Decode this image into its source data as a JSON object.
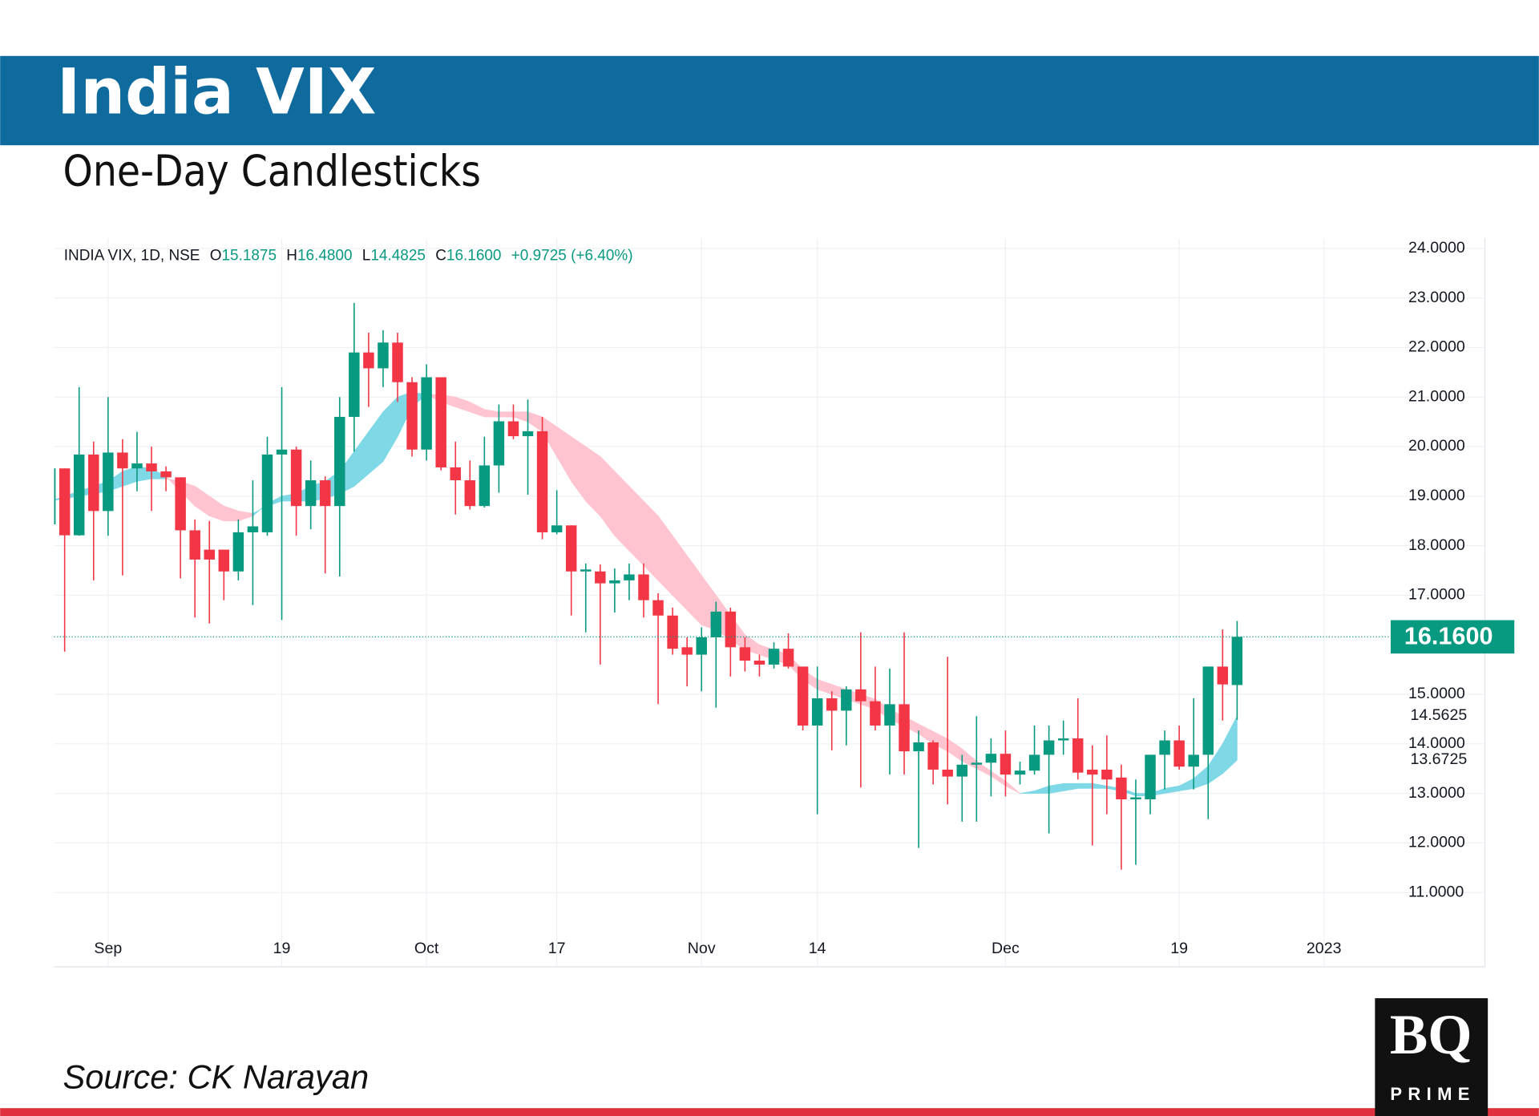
{
  "header": {
    "title": "India VIX",
    "subtitle": "One-Day Candlesticks"
  },
  "footer": {
    "source": "Source: CK Narayan",
    "logo_main": "BQ",
    "logo_sub": "PRIME"
  },
  "chart_data": {
    "type": "candlestick",
    "legend": {
      "symbol": "INDIA VIX, 1D, NSE",
      "open_label": "O",
      "open": "15.1875",
      "high_label": "H",
      "high": "16.4800",
      "low_label": "L",
      "low": "14.4825",
      "close_label": "C",
      "close": "16.1600",
      "change": "+0.9725 (+6.40%)"
    },
    "last_label": "16.1600",
    "up_color": "#089981",
    "down_color": "#f23645",
    "cloud_up_color": "#7fd8e6",
    "cloud_down_color": "#ffc4cf",
    "ylim": [
      9.5,
      24.2
    ],
    "yticks": [
      {
        "value": 11,
        "label": "11.0000"
      },
      {
        "value": 12,
        "label": "12.0000"
      },
      {
        "value": 13,
        "label": "13.0000"
      },
      {
        "value": 14,
        "label": "14.0000"
      },
      {
        "value": 15,
        "label": "15.0000"
      },
      {
        "value": 17,
        "label": "17.0000"
      },
      {
        "value": 18,
        "label": "18.0000"
      },
      {
        "value": 19,
        "label": "19.0000"
      },
      {
        "value": 20,
        "label": "20.0000"
      },
      {
        "value": 21,
        "label": "21.0000"
      },
      {
        "value": 22,
        "label": "22.0000"
      },
      {
        "value": 23,
        "label": "23.0000"
      },
      {
        "value": 24,
        "label": "24.0000"
      }
    ],
    "grid": true,
    "categories": [
      null,
      null,
      null,
      null,
      "Sep",
      null,
      null,
      null,
      null,
      null,
      null,
      null,
      null,
      null,
      null,
      null,
      "19",
      null,
      null,
      null,
      null,
      null,
      null,
      null,
      null,
      null,
      "Oct",
      null,
      null,
      null,
      null,
      null,
      null,
      null,
      null,
      "17",
      null,
      null,
      null,
      null,
      null,
      null,
      null,
      null,
      null,
      "Nov",
      null,
      null,
      null,
      null,
      null,
      null,
      null,
      "14",
      null,
      null,
      null,
      null,
      null,
      null,
      null,
      null,
      null,
      null,
      null,
      null,
      "Dec",
      null,
      null,
      null,
      null,
      null,
      null,
      null,
      null,
      null,
      null,
      null,
      "19",
      null,
      null,
      null,
      null,
      null,
      null,
      null,
      null,
      null,
      "2023"
    ],
    "open": [
      18.43,
      19.56,
      18.21,
      19.84,
      18.7,
      19.88,
      19.56,
      19.66,
      19.5,
      19.38,
      18.31,
      17.92,
      17.92,
      17.48,
      18.27,
      18.27,
      19.84,
      19.94,
      18.8,
      19.32,
      18.8,
      20.6,
      21.9,
      21.58,
      22.1,
      21.3,
      19.94,
      21.4,
      19.58,
      19.32,
      18.8,
      19.62,
      20.51,
      20.21,
      20.31,
      18.27,
      18.41,
      17.48,
      17.48,
      17.24,
      17.3,
      17.42,
      16.9,
      16.59,
      15.95,
      15.8,
      16.15,
      16.67,
      15.95,
      15.68,
      15.6,
      15.92,
      15.56,
      14.37,
      14.92,
      14.67,
      15.1,
      14.86,
      14.37,
      14.8,
      13.85,
      14.03,
      13.48,
      13.34,
      13.58,
      13.62,
      13.8,
      13.38,
      13.46,
      13.78,
      14.07,
      14.11,
      13.48,
      13.48,
      13.32,
      12.88,
      12.88,
      13.78,
      14.07,
      13.54,
      13.78,
      15.56,
      15.1875,
      null,
      null,
      null,
      null,
      null,
      null
    ],
    "high": [
      19.56,
      19.56,
      21.2,
      20.1,
      21.0,
      20.15,
      20.3,
      20.0,
      19.6,
      19.38,
      18.53,
      18.5,
      17.92,
      18.53,
      19.32,
      20.2,
      21.2,
      20.0,
      19.72,
      19.4,
      21.0,
      22.9,
      22.3,
      22.35,
      22.3,
      21.4,
      21.66,
      21.4,
      20.1,
      19.72,
      20.2,
      20.85,
      20.85,
      20.95,
      20.6,
      19.12,
      18.41,
      17.64,
      17.62,
      17.54,
      17.64,
      17.64,
      17.04,
      16.75,
      16.15,
      16.35,
      16.87,
      16.75,
      16.15,
      15.8,
      16.05,
      16.23,
      15.56,
      15.56,
      15.06,
      15.16,
      16.25,
      15.56,
      15.52,
      16.25,
      14.27,
      14.07,
      15.76,
      13.78,
      14.56,
      14.11,
      14.27,
      13.64,
      14.37,
      14.37,
      14.47,
      14.92,
      13.97,
      14.17,
      13.58,
      13.28,
      13.78,
      14.27,
      14.37,
      14.92,
      15.56,
      16.31,
      16.48,
      null,
      null,
      null,
      null,
      null,
      null
    ],
    "low": [
      18.43,
      15.86,
      18.2,
      17.3,
      18.2,
      17.4,
      19.1,
      18.7,
      19.1,
      17.34,
      16.55,
      16.43,
      16.9,
      17.3,
      16.8,
      18.2,
      16.5,
      18.2,
      18.33,
      17.44,
      17.38,
      19.9,
      20.8,
      21.2,
      20.9,
      19.8,
      19.72,
      19.52,
      18.63,
      18.73,
      18.77,
      19.07,
      20.15,
      19.03,
      18.13,
      18.23,
      16.59,
      16.25,
      15.6,
      16.65,
      16.9,
      16.55,
      14.8,
      15.8,
      15.16,
      15.06,
      14.73,
      15.36,
      15.46,
      15.36,
      15.52,
      15.52,
      14.27,
      12.58,
      13.87,
      13.97,
      13.12,
      14.27,
      13.38,
      13.38,
      11.9,
      13.18,
      12.78,
      12.43,
      12.43,
      12.94,
      12.94,
      13.18,
      13.38,
      12.19,
      13.78,
      13.28,
      11.95,
      12.58,
      11.46,
      11.56,
      12.58,
      13.08,
      13.48,
      13.08,
      12.48,
      14.47,
      14.4825,
      null,
      null,
      null,
      null,
      null,
      null
    ],
    "close": [
      19.56,
      18.21,
      19.84,
      18.7,
      19.88,
      19.56,
      19.66,
      19.5,
      19.38,
      18.31,
      17.72,
      17.72,
      17.48,
      18.27,
      18.39,
      19.84,
      19.94,
      18.8,
      19.32,
      18.8,
      20.6,
      21.9,
      21.58,
      22.1,
      21.3,
      19.94,
      21.4,
      19.58,
      19.32,
      18.8,
      19.62,
      20.51,
      20.21,
      20.31,
      18.27,
      18.41,
      17.48,
      17.52,
      17.24,
      17.3,
      17.42,
      16.9,
      16.59,
      15.92,
      15.8,
      16.15,
      16.67,
      15.95,
      15.68,
      15.6,
      15.92,
      15.56,
      14.37,
      14.92,
      14.67,
      15.1,
      14.86,
      14.37,
      14.8,
      13.85,
      14.03,
      13.48,
      13.34,
      13.58,
      13.62,
      13.8,
      13.38,
      13.46,
      13.78,
      14.07,
      14.11,
      13.42,
      13.38,
      13.28,
      12.88,
      12.92,
      13.78,
      14.07,
      13.54,
      13.78,
      15.56,
      15.2,
      16.16,
      null,
      null,
      null,
      null,
      null,
      null
    ],
    "cloud": {
      "fast": [
        18.9,
        19.0,
        19.1,
        19.2,
        19.3,
        19.5,
        19.6,
        19.55,
        19.4,
        19.1,
        18.8,
        18.6,
        18.5,
        18.5,
        18.6,
        18.85,
        19.0,
        19.05,
        19.2,
        19.3,
        19.5,
        19.9,
        20.3,
        20.7,
        21.0,
        21.1,
        21.05,
        20.9,
        20.8,
        20.7,
        20.6,
        20.6,
        20.6,
        20.5,
        20.3,
        19.8,
        19.3,
        18.9,
        18.6,
        18.2,
        17.9,
        17.6,
        17.3,
        17.0,
        16.7,
        16.4,
        16.3,
        16.1,
        15.9,
        15.8,
        15.7,
        15.6,
        15.3,
        15.1,
        15.0,
        14.9,
        14.8,
        14.7,
        14.5,
        14.35,
        14.2,
        14.0,
        13.85,
        13.65,
        13.5,
        13.35,
        13.15,
        13.0,
        13.05,
        13.15,
        13.2,
        13.2,
        13.2,
        13.15,
        13.1,
        13.0,
        13.0,
        13.1,
        13.15,
        13.3,
        13.55,
        14.0,
        14.5625,
        null,
        null,
        null,
        null,
        null,
        null
      ],
      "slow": [
        18.9,
        18.95,
        19.0,
        19.05,
        19.1,
        19.2,
        19.3,
        19.35,
        19.35,
        19.3,
        19.2,
        19.0,
        18.8,
        18.7,
        18.65,
        18.8,
        18.9,
        18.9,
        18.9,
        18.95,
        19.05,
        19.2,
        19.45,
        19.7,
        20.2,
        20.8,
        21.05,
        21.05,
        21.0,
        20.9,
        20.75,
        20.7,
        20.7,
        20.7,
        20.6,
        20.4,
        20.2,
        20.0,
        19.8,
        19.5,
        19.2,
        18.9,
        18.6,
        18.2,
        17.8,
        17.4,
        17.0,
        16.6,
        16.2,
        16.0,
        15.9,
        15.8,
        15.5,
        15.3,
        15.2,
        15.1,
        15.0,
        14.9,
        14.7,
        14.55,
        14.4,
        14.25,
        14.1,
        13.9,
        13.65,
        13.45,
        13.25,
        13.0,
        13.0,
        13.0,
        13.05,
        13.1,
        13.1,
        13.1,
        13.05,
        12.95,
        12.95,
        13.0,
        13.05,
        13.1,
        13.2,
        13.4,
        13.6725,
        null,
        null,
        null,
        null,
        null,
        null
      ]
    }
  }
}
